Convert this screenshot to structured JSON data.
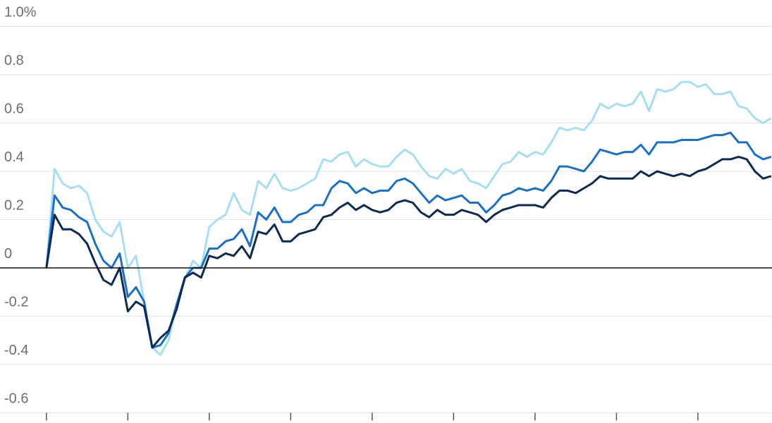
{
  "chart_data": {
    "type": "line",
    "x": [
      0,
      1,
      2,
      3,
      4,
      5,
      6,
      7,
      8,
      9,
      10,
      11,
      12,
      13,
      14,
      15,
      16,
      17,
      18,
      19,
      20,
      21,
      22,
      23,
      24,
      25,
      26,
      27,
      28,
      29,
      30,
      31,
      32,
      33,
      34,
      35,
      36,
      37,
      38,
      39,
      40,
      41,
      42,
      43,
      44,
      45,
      46,
      47,
      48,
      49,
      50,
      51,
      52,
      53,
      54,
      55,
      56,
      57,
      58,
      59,
      60,
      61,
      62,
      63,
      64,
      65,
      66,
      67,
      68,
      69,
      70,
      71,
      72,
      73,
      74,
      75,
      76,
      77,
      78,
      79,
      80,
      81,
      82,
      83,
      84,
      85,
      86,
      87,
      88,
      89
    ],
    "series": [
      {
        "color": "#a6def4",
        "values": [
          0,
          0.41,
          0.35,
          0.33,
          0.34,
          0.31,
          0.2,
          0.15,
          0.13,
          0.19,
          0.0,
          0.05,
          -0.14,
          -0.33,
          -0.36,
          -0.3,
          -0.15,
          -0.05,
          0.03,
          0.0,
          0.17,
          0.2,
          0.22,
          0.31,
          0.24,
          0.22,
          0.36,
          0.33,
          0.39,
          0.33,
          0.32,
          0.33,
          0.35,
          0.37,
          0.45,
          0.44,
          0.47,
          0.48,
          0.42,
          0.45,
          0.43,
          0.42,
          0.42,
          0.46,
          0.49,
          0.47,
          0.42,
          0.38,
          0.37,
          0.41,
          0.39,
          0.41,
          0.36,
          0.35,
          0.33,
          0.38,
          0.43,
          0.44,
          0.48,
          0.46,
          0.48,
          0.47,
          0.52,
          0.58,
          0.57,
          0.58,
          0.57,
          0.61,
          0.68,
          0.66,
          0.68,
          0.67,
          0.68,
          0.73,
          0.65,
          0.74,
          0.73,
          0.74,
          0.77,
          0.77,
          0.75,
          0.76,
          0.72,
          0.72,
          0.73,
          0.67,
          0.66,
          0.62,
          0.6,
          0.62
        ]
      },
      {
        "color": "#1a70c8",
        "values": [
          0,
          0.3,
          0.25,
          0.24,
          0.21,
          0.19,
          0.1,
          0.03,
          0.0,
          0.06,
          -0.12,
          -0.08,
          -0.14,
          -0.33,
          -0.32,
          -0.27,
          -0.15,
          -0.04,
          0.0,
          0.0,
          0.08,
          0.08,
          0.11,
          0.12,
          0.16,
          0.09,
          0.23,
          0.2,
          0.25,
          0.19,
          0.19,
          0.22,
          0.23,
          0.26,
          0.26,
          0.33,
          0.36,
          0.35,
          0.31,
          0.33,
          0.31,
          0.32,
          0.32,
          0.36,
          0.37,
          0.35,
          0.31,
          0.27,
          0.3,
          0.28,
          0.29,
          0.3,
          0.27,
          0.27,
          0.23,
          0.26,
          0.3,
          0.31,
          0.33,
          0.32,
          0.33,
          0.32,
          0.36,
          0.42,
          0.42,
          0.41,
          0.4,
          0.44,
          0.49,
          0.48,
          0.47,
          0.48,
          0.48,
          0.51,
          0.47,
          0.52,
          0.52,
          0.52,
          0.53,
          0.53,
          0.53,
          0.54,
          0.55,
          0.55,
          0.56,
          0.52,
          0.52,
          0.47,
          0.45,
          0.46
        ]
      },
      {
        "color": "#0d2b52",
        "values": [
          0,
          0.22,
          0.16,
          0.16,
          0.14,
          0.1,
          0.02,
          -0.05,
          -0.07,
          0.0,
          -0.18,
          -0.14,
          -0.16,
          -0.33,
          -0.29,
          -0.26,
          -0.17,
          -0.04,
          -0.02,
          -0.04,
          0.05,
          0.04,
          0.06,
          0.05,
          0.09,
          0.04,
          0.15,
          0.14,
          0.18,
          0.11,
          0.11,
          0.14,
          0.15,
          0.16,
          0.21,
          0.22,
          0.25,
          0.27,
          0.24,
          0.26,
          0.24,
          0.23,
          0.24,
          0.27,
          0.28,
          0.27,
          0.23,
          0.21,
          0.24,
          0.22,
          0.22,
          0.24,
          0.23,
          0.22,
          0.19,
          0.22,
          0.24,
          0.25,
          0.26,
          0.26,
          0.26,
          0.25,
          0.29,
          0.32,
          0.32,
          0.31,
          0.33,
          0.35,
          0.38,
          0.37,
          0.37,
          0.37,
          0.37,
          0.4,
          0.38,
          0.4,
          0.39,
          0.38,
          0.39,
          0.38,
          0.4,
          0.41,
          0.43,
          0.45,
          0.45,
          0.46,
          0.45,
          0.4,
          0.37,
          0.38
        ]
      }
    ],
    "xlim": [
      -5.7,
      89.1
    ],
    "xticks": [
      0,
      10,
      20,
      30,
      40,
      50,
      60,
      70,
      80
    ],
    "ylim": [
      -0.6,
      1.0
    ],
    "yticks": [
      -0.6,
      -0.4,
      -0.2,
      0,
      0.2,
      0.4,
      0.6,
      0.8,
      {
        "value": 1.0,
        "label": "1.0%"
      }
    ],
    "grid": true
  }
}
